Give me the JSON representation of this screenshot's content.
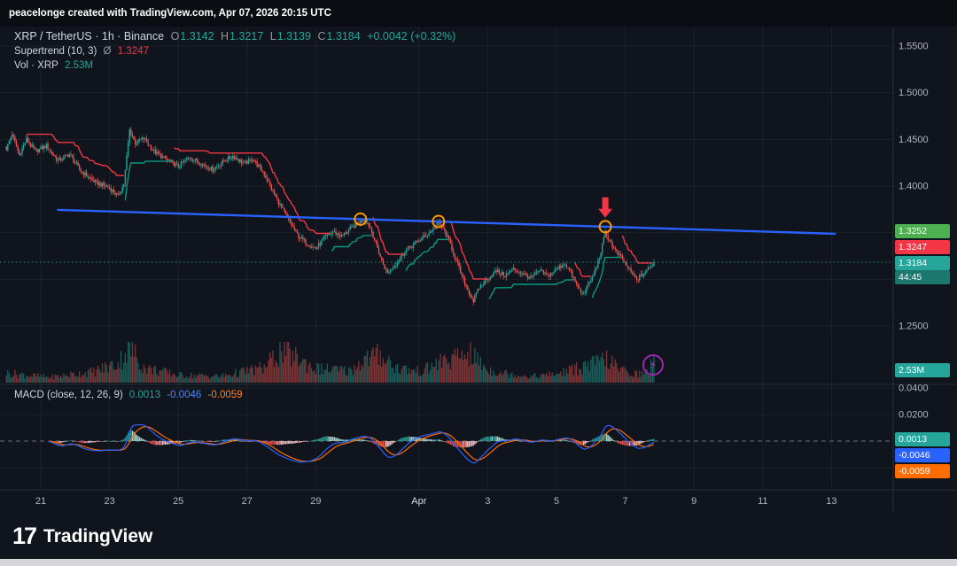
{
  "top_bar": {
    "attribution": "peacelonge created with TradingView.com, Apr 07, 2026 20:15 UTC"
  },
  "header": {
    "symbol_title": "XRP / TetherUS · 1h · Binance",
    "ohlc": {
      "o_label": "O",
      "o": "1.3142",
      "h_label": "H",
      "h": "1.3217",
      "l_label": "L",
      "l": "1.3139",
      "c_label": "C",
      "c": "1.3184",
      "change": "+0.0042 (+0.32%)"
    },
    "supertrend": {
      "title": "Supertrend (10, 3)",
      "src": "Ø",
      "value": "1.3247"
    },
    "volume": {
      "title": "Vol · XRP",
      "value": "2.53M"
    }
  },
  "macd_header": {
    "title": "MACD (close, 12, 26, 9)",
    "hist": "0.0013",
    "macd": "-0.0046",
    "signal": "-0.0059"
  },
  "badges": {
    "trendline_level": {
      "text": "1.3252",
      "color": "#4caf50"
    },
    "supertrend": {
      "text": "1.3247",
      "color": "#f23645"
    },
    "last_price": {
      "text": "1.3184",
      "color": "#26a69a"
    },
    "countdown": {
      "text": "44:45",
      "color": "#1c776e"
    },
    "volume": {
      "text": "2.53M",
      "color": "#26a69a"
    },
    "macd_hist": {
      "text": "0.0013",
      "color": "#26a69a"
    },
    "macd_line": {
      "text": "-0.0046",
      "color": "#2962ff"
    },
    "macd_signal": {
      "text": "-0.0059",
      "color": "#ff6d00"
    }
  },
  "price_axis": {
    "ticks": [
      {
        "label": "1.5500",
        "value": 1.55
      },
      {
        "label": "1.5000",
        "value": 1.5
      },
      {
        "label": "1.4500",
        "value": 1.45
      },
      {
        "label": "1.4000",
        "value": 1.4
      },
      {
        "label": "1.2500",
        "value": 1.25
      }
    ]
  },
  "macd_axis": {
    "ticks": [
      {
        "label": "0.0400",
        "value": 0.04
      },
      {
        "label": "0.0200",
        "value": 0.02
      }
    ]
  },
  "time_axis": {
    "ticks": [
      {
        "label": "21",
        "day": 21
      },
      {
        "label": "23",
        "day": 23
      },
      {
        "label": "25",
        "day": 25
      },
      {
        "label": "27",
        "day": 27
      },
      {
        "label": "29",
        "day": 29
      },
      {
        "label": "Apr",
        "day": 32,
        "major": true
      },
      {
        "label": "3",
        "day": 34
      },
      {
        "label": "5",
        "day": 36
      },
      {
        "label": "7",
        "day": 38
      },
      {
        "label": "9",
        "day": 40
      },
      {
        "label": "11",
        "day": 42
      },
      {
        "label": "13",
        "day": 44
      }
    ]
  },
  "boost": {
    "icon": "⚡"
  },
  "logo": {
    "mark": "17",
    "name": "TradingView"
  },
  "colors": {
    "up": "#26a69a",
    "down": "#ef5350",
    "supertrend_up": "#089981",
    "supertrend_down": "#f23645",
    "trendline": "#2962ff",
    "macd_line": "#2962ff",
    "macd_signal": "#ff6d00",
    "hist_grow_above": "#26a69a",
    "hist_fall_above": "#b2dfdb",
    "hist_grow_below": "#ffcdd2",
    "hist_fall_below": "#ef5350",
    "marker_circle": "#ff9800",
    "arrow": "#f23645",
    "axis_text": "#b2b5be",
    "grid": "rgba(255,255,255,0.055)"
  },
  "chart_data": {
    "type": "candlestick",
    "title": "XRP/USDT 1h — Binance, with Supertrend(10,3), Volume and MACD(12,26,9)",
    "time_span": {
      "first_bar": "Mar 20 00:00",
      "last_bar": "Apr 07 20:00",
      "axis_end": "Apr 13",
      "bar_interval_hours": 1
    },
    "price_axis_visible_range": [
      1.19,
      1.57
    ],
    "macd_axis_visible_range": [
      -0.035,
      0.05
    ],
    "last": {
      "open": 1.3142,
      "high": 1.3217,
      "low": 1.3139,
      "close": 1.3184,
      "volume_m": 2.53,
      "change": 0.0042,
      "change_pct": 0.32
    },
    "noise_amp": 0.0025,
    "wick_amp": 0.004,
    "close_waypoints": [
      [
        0,
        1.44
      ],
      [
        4,
        1.456
      ],
      [
        9,
        1.433
      ],
      [
        14,
        1.45
      ],
      [
        20,
        1.437
      ],
      [
        28,
        1.443
      ],
      [
        36,
        1.427
      ],
      [
        44,
        1.434
      ],
      [
        52,
        1.416
      ],
      [
        62,
        1.404
      ],
      [
        72,
        1.398
      ],
      [
        78,
        1.389
      ],
      [
        82,
        1.402
      ],
      [
        86,
        1.46
      ],
      [
        90,
        1.446
      ],
      [
        96,
        1.451
      ],
      [
        103,
        1.437
      ],
      [
        112,
        1.428
      ],
      [
        120,
        1.421
      ],
      [
        128,
        1.431
      ],
      [
        136,
        1.424
      ],
      [
        144,
        1.418
      ],
      [
        152,
        1.427
      ],
      [
        158,
        1.432
      ],
      [
        166,
        1.424
      ],
      [
        172,
        1.429
      ],
      [
        180,
        1.413
      ],
      [
        186,
        1.394
      ],
      [
        192,
        1.377
      ],
      [
        198,
        1.361
      ],
      [
        204,
        1.346
      ],
      [
        210,
        1.338
      ],
      [
        216,
        1.333
      ],
      [
        222,
        1.344
      ],
      [
        228,
        1.351
      ],
      [
        234,
        1.346
      ],
      [
        240,
        1.354
      ],
      [
        246,
        1.361
      ],
      [
        250,
        1.3645
      ],
      [
        254,
        1.356
      ],
      [
        258,
        1.338
      ],
      [
        262,
        1.32
      ],
      [
        266,
        1.306
      ],
      [
        272,
        1.317
      ],
      [
        278,
        1.329
      ],
      [
        284,
        1.337
      ],
      [
        290,
        1.344
      ],
      [
        296,
        1.351
      ],
      [
        302,
        1.36
      ],
      [
        306,
        1.351
      ],
      [
        310,
        1.338
      ],
      [
        314,
        1.32
      ],
      [
        318,
        1.303
      ],
      [
        322,
        1.289
      ],
      [
        326,
        1.277
      ],
      [
        330,
        1.291
      ],
      [
        336,
        1.301
      ],
      [
        342,
        1.309
      ],
      [
        348,
        1.304
      ],
      [
        354,
        1.311
      ],
      [
        360,
        1.306
      ],
      [
        366,
        1.301
      ],
      [
        372,
        1.309
      ],
      [
        378,
        1.304
      ],
      [
        384,
        1.311
      ],
      [
        390,
        1.317
      ],
      [
        394,
        1.307
      ],
      [
        398,
        1.294
      ],
      [
        402,
        1.284
      ],
      [
        406,
        1.293
      ],
      [
        410,
        1.306
      ],
      [
        414,
        1.323
      ],
      [
        418,
        1.35
      ],
      [
        421,
        1.342
      ],
      [
        424,
        1.333
      ],
      [
        428,
        1.325
      ],
      [
        432,
        1.317
      ],
      [
        436,
        1.307
      ],
      [
        440,
        1.3
      ],
      [
        444,
        1.305
      ],
      [
        448,
        1.311
      ],
      [
        451,
        1.3142
      ],
      [
        452,
        1.3184
      ]
    ],
    "volume_waypoints_m": [
      [
        0,
        0.9
      ],
      [
        30,
        0.5
      ],
      [
        60,
        1.0
      ],
      [
        78,
        1.8
      ],
      [
        86,
        3.3
      ],
      [
        96,
        1.4
      ],
      [
        120,
        0.7
      ],
      [
        150,
        0.6
      ],
      [
        180,
        1.4
      ],
      [
        192,
        3.0
      ],
      [
        204,
        2.2
      ],
      [
        216,
        1.3
      ],
      [
        240,
        1.1
      ],
      [
        250,
        2.2
      ],
      [
        262,
        2.6
      ],
      [
        272,
        1.4
      ],
      [
        290,
        1.0
      ],
      [
        302,
        1.9
      ],
      [
        314,
        2.2
      ],
      [
        322,
        2.9
      ],
      [
        336,
        1.2
      ],
      [
        352,
        0.8
      ],
      [
        368,
        0.6
      ],
      [
        384,
        0.8
      ],
      [
        398,
        1.3
      ],
      [
        406,
        1.6
      ],
      [
        414,
        1.9
      ],
      [
        418,
        2.3
      ],
      [
        428,
        1.2
      ],
      [
        440,
        0.8
      ],
      [
        448,
        0.9
      ],
      [
        452,
        2.53
      ]
    ],
    "supertrend": {
      "period": 10,
      "multiplier": 3,
      "current_value": 1.3247,
      "current_direction": "down"
    },
    "macd": {
      "fast": 12,
      "slow": 26,
      "signal": 9,
      "current": {
        "hist": 0.0013,
        "macd": -0.0046,
        "signal": -0.0059
      }
    },
    "trendline": {
      "x1_day": 21.5,
      "price1": 1.3745,
      "x2_day": 44.1,
      "price2": 1.3488
    },
    "markers": {
      "circles": [
        {
          "day": 30.3,
          "price": 1.3645
        },
        {
          "day": 32.57,
          "price": 1.362
        },
        {
          "day": 37.42,
          "price": 1.3564
        }
      ],
      "arrow": {
        "day": 37.42,
        "price_tip": 1.366,
        "direction": "down"
      }
    }
  }
}
